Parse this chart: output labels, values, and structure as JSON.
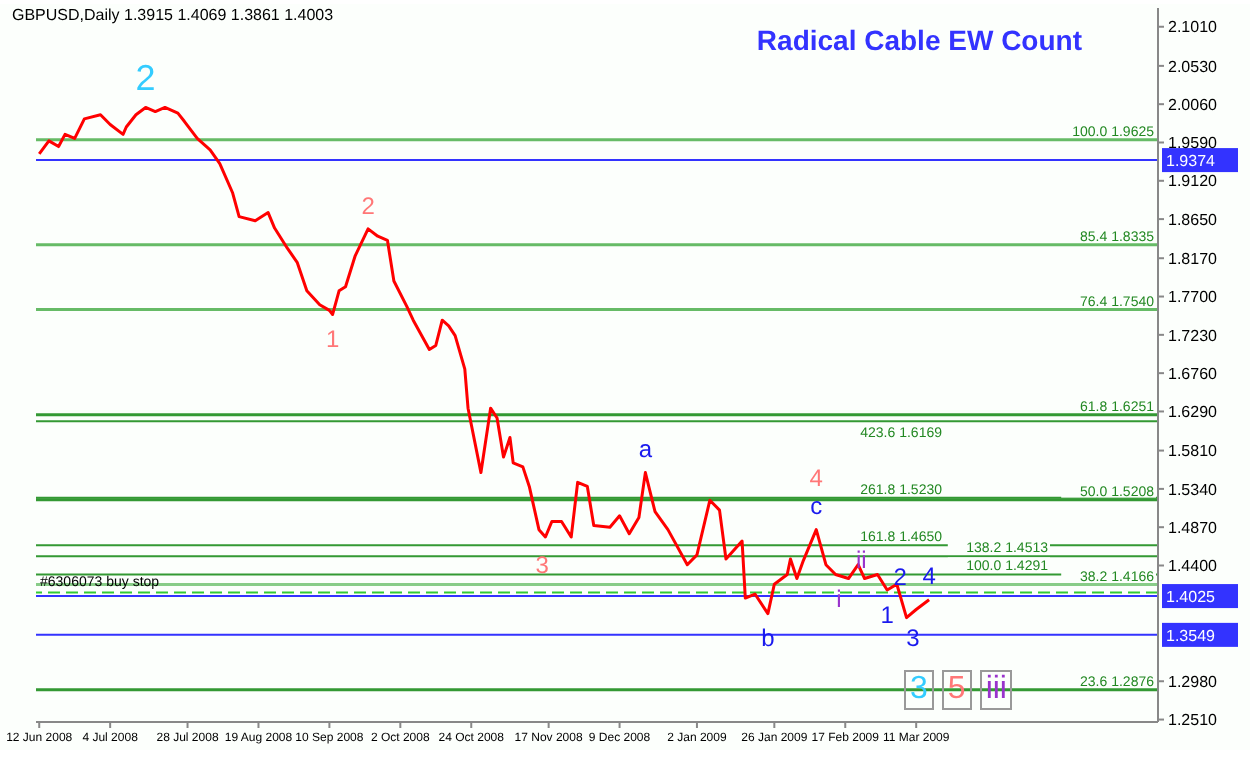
{
  "chart_data": {
    "type": "line",
    "title": "Radical Cable EW Count",
    "subtitle": "GBPUSD,Daily  1.3915 1.4069 1.3861 1.4003",
    "x": [
      "2008-06-12",
      "2008-06-15",
      "2008-06-18",
      "2008-06-20",
      "2008-06-23",
      "2008-06-26",
      "2008-07-01",
      "2008-07-04",
      "2008-07-08",
      "2008-07-09",
      "2008-07-12",
      "2008-07-15",
      "2008-07-18",
      "2008-07-21",
      "2008-07-25",
      "2008-07-27",
      "2008-07-31",
      "2008-08-04",
      "2008-08-07",
      "2008-08-11",
      "2008-08-13",
      "2008-08-18",
      "2008-08-22",
      "2008-08-24",
      "2008-08-28",
      "2008-08-31",
      "2008-09-03",
      "2008-09-07",
      "2008-09-10",
      "2008-09-11",
      "2008-09-13",
      "2008-09-15",
      "2008-09-18",
      "2008-09-22",
      "2008-09-25",
      "2008-09-28",
      "2008-09-30",
      "2008-10-04",
      "2008-10-06",
      "2008-10-11",
      "2008-10-13",
      "2008-10-15",
      "2008-10-17",
      "2008-10-19",
      "2008-10-22",
      "2008-10-23",
      "2008-10-27",
      "2008-10-30",
      "2008-11-01",
      "2008-11-03",
      "2008-11-05",
      "2008-11-06",
      "2008-11-09",
      "2008-11-11",
      "2008-11-14",
      "2008-11-16",
      "2008-11-18",
      "2008-11-21",
      "2008-11-24",
      "2008-11-26",
      "2008-11-29",
      "2008-12-01",
      "2008-12-06",
      "2008-12-09",
      "2008-12-12",
      "2008-12-15",
      "2008-12-17",
      "2008-12-20",
      "2008-12-24",
      "2008-12-30",
      "2009-01-02",
      "2009-01-06",
      "2009-01-09",
      "2009-01-11",
      "2009-01-16",
      "2009-01-17",
      "2009-01-20",
      "2009-01-24",
      "2009-01-26",
      "2009-01-30",
      "2009-01-31",
      "2009-02-02",
      "2009-02-04",
      "2009-02-08",
      "2009-02-11",
      "2009-02-14",
      "2009-02-18",
      "2009-02-21",
      "2009-02-23",
      "2009-02-27",
      "2009-03-02",
      "2009-03-05",
      "2009-03-08",
      "2009-03-11",
      "2009-03-15"
    ],
    "series": [
      {
        "color": "#ff0000",
        "values": [
          1.945,
          1.961,
          1.954,
          1.969,
          1.964,
          1.988,
          1.993,
          1.981,
          1.969,
          1.978,
          1.993,
          2.002,
          1.997,
          2.002,
          1.995,
          1.985,
          1.964,
          1.95,
          1.933,
          1.897,
          1.868,
          1.863,
          1.873,
          1.854,
          1.829,
          1.812,
          1.777,
          1.76,
          1.753,
          1.748,
          1.777,
          1.782,
          1.82,
          1.853,
          1.844,
          1.839,
          1.789,
          1.758,
          1.741,
          1.705,
          1.71,
          1.741,
          1.734,
          1.722,
          1.681,
          1.633,
          1.554,
          1.633,
          1.621,
          1.573,
          1.597,
          1.566,
          1.561,
          1.537,
          1.484,
          1.475,
          1.494,
          1.494,
          1.475,
          1.542,
          1.537,
          1.489,
          1.487,
          1.501,
          1.479,
          1.499,
          1.554,
          1.506,
          1.484,
          1.441,
          1.453,
          1.52,
          1.508,
          1.448,
          1.47,
          1.4,
          1.405,
          1.381,
          1.417,
          1.429,
          1.448,
          1.424,
          1.446,
          1.484,
          1.441,
          1.429,
          1.424,
          1.441,
          1.424,
          1.429,
          1.41,
          1.417,
          1.376,
          1.386,
          1.398
        ]
      }
    ],
    "xlim": [
      "2008-06-11",
      "2009-05-25"
    ],
    "xticks": [
      {
        "value": "2008-06-12",
        "label": "12 Jun 2008"
      },
      {
        "value": "2008-07-04",
        "label": "4 Jul 2008"
      },
      {
        "value": "2008-07-28",
        "label": "28 Jul 2008"
      },
      {
        "value": "2008-08-19",
        "label": "19 Aug 2008"
      },
      {
        "value": "2008-09-10",
        "label": "10 Sep 2008"
      },
      {
        "value": "2008-10-02",
        "label": "2 Oct 2008"
      },
      {
        "value": "2008-10-24",
        "label": "24 Oct 2008"
      },
      {
        "value": "2008-11-17",
        "label": "17 Nov 2008"
      },
      {
        "value": "2008-12-09",
        "label": "9 Dec 2008"
      },
      {
        "value": "2009-01-02",
        "label": "2 Jan 2009"
      },
      {
        "value": "2009-01-26",
        "label": "26 Jan 2009"
      },
      {
        "value": "2009-02-17",
        "label": "17 Feb 2009"
      },
      {
        "value": "2009-03-11",
        "label": "11 Mar 2009"
      }
    ],
    "ylim": [
      1.248,
      2.124
    ],
    "yticks": [
      {
        "value": 2.101,
        "label": "2.1010"
      },
      {
        "value": 2.053,
        "label": "2.0530"
      },
      {
        "value": 2.006,
        "label": "2.0060"
      },
      {
        "value": 1.959,
        "label": "1.9590"
      },
      {
        "value": 1.912,
        "label": "1.9120"
      },
      {
        "value": 1.865,
        "label": "1.8650"
      },
      {
        "value": 1.817,
        "label": "1.8170"
      },
      {
        "value": 1.77,
        "label": "1.7700"
      },
      {
        "value": 1.723,
        "label": "1.7230"
      },
      {
        "value": 1.676,
        "label": "1.6760"
      },
      {
        "value": 1.629,
        "label": "1.6290"
      },
      {
        "value": 1.581,
        "label": "1.5810"
      },
      {
        "value": 1.534,
        "label": "1.5340"
      },
      {
        "value": 1.487,
        "label": "1.4870"
      },
      {
        "value": 1.44,
        "label": "1.4400"
      },
      {
        "value": 1.298,
        "label": "1.2980"
      },
      {
        "value": 1.251,
        "label": "1.2510"
      }
    ],
    "grid": false,
    "marker": "none",
    "line_style": "solid",
    "ref_lines": [
      {
        "axis": "y",
        "value": 1.9374,
        "label": "1.9374",
        "color": "#3333ff"
      },
      {
        "axis": "y",
        "value": 1.4025,
        "label": "1.4025",
        "color": "#3333ff"
      },
      {
        "axis": "y",
        "value": 1.3549,
        "label": "1.3549",
        "color": "#3333ff"
      },
      {
        "axis": "y",
        "value": 1.9625,
        "label": "100.0  1.9625",
        "color": "#66bb66"
      },
      {
        "axis": "y",
        "value": 1.8335,
        "label": "85.4  1.8335",
        "color": "#66bb66"
      },
      {
        "axis": "y",
        "value": 1.754,
        "label": "76.4  1.7540",
        "color": "#66bb66"
      },
      {
        "axis": "y",
        "value": 1.6251,
        "label": "61.8  1.6251",
        "color": "#339933"
      },
      {
        "axis": "y",
        "value": 1.5208,
        "label": "50.0  1.5208",
        "color": "#339933"
      },
      {
        "axis": "y",
        "value": 1.4166,
        "label": "38.2  1.4166",
        "color": "#88cc88"
      },
      {
        "axis": "y",
        "value": 1.2876,
        "label": "23.6  1.2876",
        "color": "#339933"
      },
      {
        "axis": "y",
        "value": 1.407,
        "label": "#6306073 buy stop",
        "color": "#33cc33",
        "line_style": "dashed"
      },
      {
        "axis": "y",
        "value": 1.6169,
        "label": "423.6  1.6169",
        "color": "#339933"
      },
      {
        "axis": "y",
        "value": 1.523,
        "label": "261.8  1.5230",
        "color": "#339933"
      },
      {
        "axis": "y",
        "value": 1.465,
        "label": "161.8  1.4650",
        "color": "#339933"
      },
      {
        "axis": "y",
        "value": 1.4513,
        "label": "138.2  1.4513",
        "color": "#339933"
      },
      {
        "axis": "y",
        "value": 1.4291,
        "label": "100.0  1.4291",
        "color": "#339933"
      }
    ],
    "annotations": [
      {
        "text": "2",
        "x": "2008-07-15",
        "y": 2.002
      },
      {
        "text": "2",
        "x": "2008-09-22",
        "y": 1.853
      },
      {
        "text": "1",
        "x": "2008-09-11",
        "y": 1.748
      },
      {
        "text": "3",
        "x": "2008-11-15",
        "y": 1.441
      },
      {
        "text": "a",
        "x": "2008-12-17",
        "y": 1.554
      },
      {
        "text": "c",
        "x": "2009-02-08",
        "y": 1.484
      },
      {
        "text": "4",
        "x": "2009-02-08",
        "y": 1.484
      },
      {
        "text": "b",
        "x": "2009-01-24",
        "y": 1.381
      },
      {
        "text": "ii",
        "x": "2009-02-22",
        "y": 1.448
      },
      {
        "text": "i",
        "x": "2009-02-15",
        "y": 1.4
      },
      {
        "text": "1",
        "x": "2009-03-02",
        "y": 1.41
      },
      {
        "text": "2",
        "x": "2009-03-06",
        "y": 1.427
      },
      {
        "text": "3",
        "x": "2009-03-10",
        "y": 1.352
      },
      {
        "text": "4",
        "x": "2009-03-15",
        "y": 1.398
      },
      "3",
      "5",
      "iii"
    ]
  }
}
